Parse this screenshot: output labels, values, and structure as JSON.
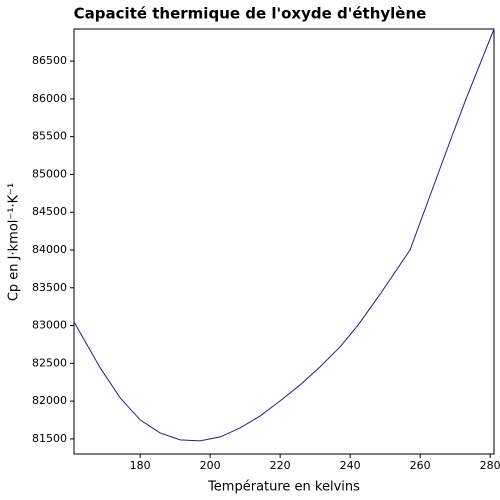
{
  "chart_data": {
    "type": "line",
    "title": "Capacité thermique de l'oxyde d'éthylène",
    "x_label": "Température en kelvins",
    "y_label": "Cp en J·kmol⁻¹·K⁻¹",
    "x": [
      161.1,
      168.6,
      174.3,
      180,
      185.7,
      191.4,
      197.1,
      202.9,
      208.6,
      214.3,
      220,
      225.7,
      231.4,
      237.1,
      242.3,
      248.6,
      257.1,
      265.1,
      269.1,
      273.1,
      281.1
    ],
    "series": [
      {
        "name": "Cp",
        "color": "#1f1f8f",
        "values": [
          83048,
          82439,
          82042,
          81751,
          81579,
          81487,
          81474,
          81526,
          81646,
          81804,
          82003,
          82214,
          82453,
          82717,
          83008,
          83418,
          84000,
          85006,
          85509,
          85998,
          86924
        ]
      }
    ],
    "xlim": [
      161.1,
      281.1
    ],
    "ylim": [
      81300,
      86925
    ],
    "xticks": [
      180,
      200,
      220,
      240,
      260,
      280
    ],
    "yticks": [
      81500,
      82000,
      82500,
      83000,
      83500,
      84000,
      84500,
      85000,
      85500,
      86000,
      86500
    ]
  }
}
